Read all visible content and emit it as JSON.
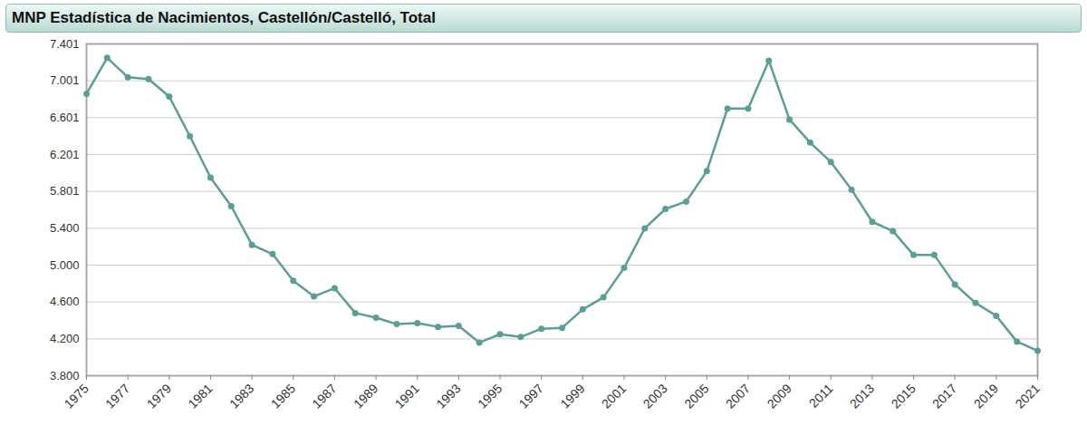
{
  "chart_data": {
    "type": "line",
    "title": "MNP Estadística de Nacimientos, Castellón/Castelló, Total",
    "x": [
      1975,
      1976,
      1977,
      1978,
      1979,
      1980,
      1981,
      1982,
      1983,
      1984,
      1985,
      1986,
      1987,
      1988,
      1989,
      1990,
      1991,
      1992,
      1993,
      1994,
      1995,
      1996,
      1997,
      1998,
      1999,
      2000,
      2001,
      2002,
      2003,
      2004,
      2005,
      2006,
      2007,
      2008,
      2009,
      2010,
      2011,
      2012,
      2013,
      2014,
      2015,
      2016,
      2017,
      2018,
      2019,
      2020,
      2021
    ],
    "values": [
      6860,
      7250,
      7040,
      7020,
      6830,
      6400,
      5950,
      5640,
      5220,
      5120,
      4830,
      4660,
      4750,
      4480,
      4430,
      4360,
      4370,
      4330,
      4340,
      4160,
      4250,
      4220,
      4310,
      4320,
      4520,
      4650,
      4970,
      5400,
      5610,
      5690,
      6020,
      6700,
      6700,
      7220,
      6580,
      6330,
      6120,
      5820,
      5470,
      5370,
      5110,
      5110,
      4790,
      4590,
      4450,
      4170,
      4070
    ],
    "color": "#5b9e98",
    "marker": "circle",
    "grid": true,
    "xlim": [
      1975,
      2021
    ],
    "xticks": [
      1975,
      1977,
      1979,
      1981,
      1983,
      1985,
      1987,
      1989,
      1991,
      1993,
      1995,
      1997,
      1999,
      2001,
      2003,
      2005,
      2007,
      2009,
      2011,
      2013,
      2015,
      2017,
      2019,
      2021
    ],
    "ylim": [
      3800,
      7401
    ],
    "yticks": [
      {
        "value": 3800,
        "label": "3.800"
      },
      {
        "value": 4200,
        "label": "4.200"
      },
      {
        "value": 4600,
        "label": "4.600"
      },
      {
        "value": 5000,
        "label": "5.000"
      },
      {
        "value": 5400,
        "label": "5.400"
      },
      {
        "value": 5801,
        "label": "5.801"
      },
      {
        "value": 6201,
        "label": "6.201"
      },
      {
        "value": 6601,
        "label": "6.601"
      },
      {
        "value": 7001,
        "label": "7.001"
      },
      {
        "value": 7401,
        "label": "7.401"
      }
    ]
  }
}
